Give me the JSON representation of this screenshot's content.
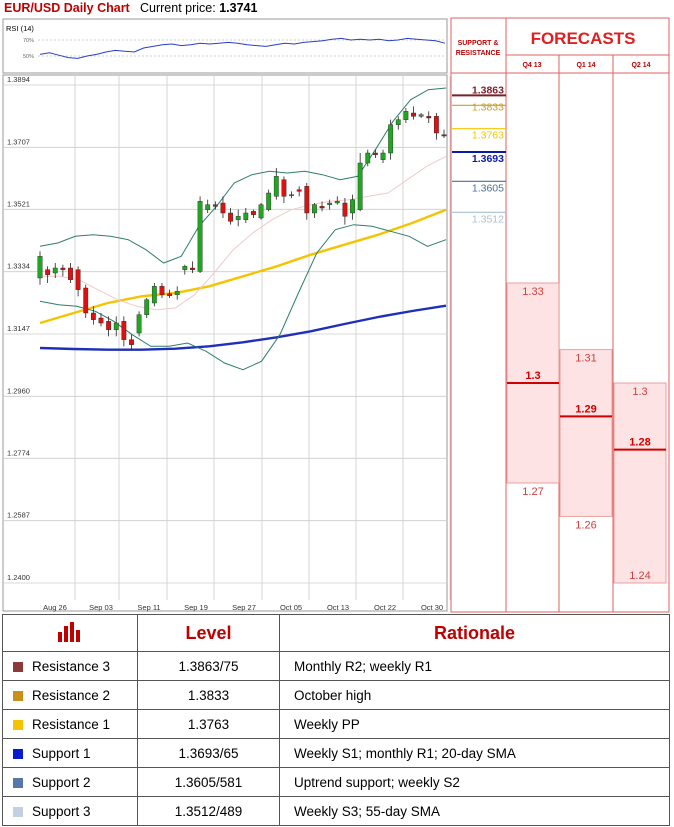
{
  "header": {
    "title": "EUR/USD Daily Chart",
    "price_label": "Current price:",
    "price_value": "1.3741"
  },
  "chart_data": [
    {
      "type": "line",
      "title": "RSI (14)",
      "y_ticks": [
        "70%",
        "50%"
      ],
      "series": [
        {
          "values": [
            52,
            54,
            51,
            48,
            47,
            50,
            52,
            55,
            57,
            56,
            55,
            60,
            62,
            64,
            65,
            63,
            64,
            66,
            65,
            66,
            67,
            66,
            64,
            63,
            62,
            64,
            66,
            65,
            67,
            68,
            69,
            71,
            72,
            70,
            71,
            70,
            71,
            69,
            70,
            72,
            71,
            70,
            69,
            66
          ]
        }
      ]
    },
    {
      "type": "candlestick",
      "y_ticks": [
        "1.3894",
        "1.3707",
        "1.3521",
        "1.3334",
        "1.3147",
        "1.2960",
        "1.2774",
        "1.2587",
        "1.2400"
      ],
      "x_ticks": [
        "Aug 26",
        "Sep 03",
        "Sep 11",
        "Sep 19",
        "Sep 27",
        "Oct 05",
        "Oct 13",
        "Oct 22",
        "Oct 30"
      ],
      "ylim": [
        1.24,
        1.3894
      ],
      "candles": [
        {
          "o": 1.3315,
          "h": 1.3395,
          "l": 1.3295,
          "c": 1.338
        },
        {
          "o": 1.334,
          "h": 1.335,
          "l": 1.33,
          "c": 1.3325
        },
        {
          "o": 1.333,
          "h": 1.336,
          "l": 1.3315,
          "c": 1.3345
        },
        {
          "o": 1.3345,
          "h": 1.3355,
          "l": 1.332,
          "c": 1.334
        },
        {
          "o": 1.3345,
          "h": 1.336,
          "l": 1.33,
          "c": 1.331
        },
        {
          "o": 1.334,
          "h": 1.335,
          "l": 1.326,
          "c": 1.328
        },
        {
          "o": 1.3285,
          "h": 1.3295,
          "l": 1.3195,
          "c": 1.321
        },
        {
          "o": 1.321,
          "h": 1.323,
          "l": 1.3175,
          "c": 1.319
        },
        {
          "o": 1.3195,
          "h": 1.321,
          "l": 1.317,
          "c": 1.318
        },
        {
          "o": 1.3185,
          "h": 1.32,
          "l": 1.314,
          "c": 1.316
        },
        {
          "o": 1.316,
          "h": 1.32,
          "l": 1.314,
          "c": 1.318
        },
        {
          "o": 1.3185,
          "h": 1.32,
          "l": 1.311,
          "c": 1.313
        },
        {
          "o": 1.313,
          "h": 1.3145,
          "l": 1.31,
          "c": 1.3115
        },
        {
          "o": 1.315,
          "h": 1.3215,
          "l": 1.314,
          "c": 1.3205
        },
        {
          "o": 1.3205,
          "h": 1.3255,
          "l": 1.3195,
          "c": 1.325
        },
        {
          "o": 1.324,
          "h": 1.33,
          "l": 1.323,
          "c": 1.329
        },
        {
          "o": 1.329,
          "h": 1.33,
          "l": 1.3255,
          "c": 1.3265
        },
        {
          "o": 1.3268,
          "h": 1.328,
          "l": 1.3255,
          "c": 1.3262
        },
        {
          "o": 1.3265,
          "h": 1.329,
          "l": 1.325,
          "c": 1.3275
        },
        {
          "o": 1.334,
          "h": 1.3355,
          "l": 1.3325,
          "c": 1.335
        },
        {
          "o": 1.3345,
          "h": 1.3365,
          "l": 1.333,
          "c": 1.334
        },
        {
          "o": 1.3335,
          "h": 1.356,
          "l": 1.333,
          "c": 1.3545
        },
        {
          "o": 1.352,
          "h": 1.355,
          "l": 1.351,
          "c": 1.3535
        },
        {
          "o": 1.3535,
          "h": 1.3545,
          "l": 1.352,
          "c": 1.353
        },
        {
          "o": 1.354,
          "h": 1.356,
          "l": 1.3495,
          "c": 1.351
        },
        {
          "o": 1.351,
          "h": 1.3525,
          "l": 1.3475,
          "c": 1.3485
        },
        {
          "o": 1.349,
          "h": 1.352,
          "l": 1.347,
          "c": 1.35
        },
        {
          "o": 1.349,
          "h": 1.3525,
          "l": 1.348,
          "c": 1.351
        },
        {
          "o": 1.3515,
          "h": 1.352,
          "l": 1.3495,
          "c": 1.3505
        },
        {
          "o": 1.3495,
          "h": 1.354,
          "l": 1.349,
          "c": 1.3535
        },
        {
          "o": 1.352,
          "h": 1.358,
          "l": 1.3515,
          "c": 1.357
        },
        {
          "o": 1.356,
          "h": 1.3645,
          "l": 1.355,
          "c": 1.362
        },
        {
          "o": 1.361,
          "h": 1.362,
          "l": 1.354,
          "c": 1.356
        },
        {
          "o": 1.3565,
          "h": 1.3575,
          "l": 1.3555,
          "c": 1.3565
        },
        {
          "o": 1.358,
          "h": 1.359,
          "l": 1.356,
          "c": 1.3575
        },
        {
          "o": 1.359,
          "h": 1.36,
          "l": 1.349,
          "c": 1.351
        },
        {
          "o": 1.351,
          "h": 1.354,
          "l": 1.3495,
          "c": 1.3535
        },
        {
          "o": 1.353,
          "h": 1.3545,
          "l": 1.3515,
          "c": 1.3525
        },
        {
          "o": 1.3535,
          "h": 1.355,
          "l": 1.352,
          "c": 1.354
        },
        {
          "o": 1.354,
          "h": 1.356,
          "l": 1.3535,
          "c": 1.3545
        },
        {
          "o": 1.354,
          "h": 1.3555,
          "l": 1.3475,
          "c": 1.35
        },
        {
          "o": 1.351,
          "h": 1.3565,
          "l": 1.349,
          "c": 1.355
        },
        {
          "o": 1.352,
          "h": 1.369,
          "l": 1.3515,
          "c": 1.366
        },
        {
          "o": 1.366,
          "h": 1.37,
          "l": 1.365,
          "c": 1.369
        },
        {
          "o": 1.369,
          "h": 1.37,
          "l": 1.3675,
          "c": 1.3685
        },
        {
          "o": 1.367,
          "h": 1.37,
          "l": 1.366,
          "c": 1.369
        },
        {
          "o": 1.369,
          "h": 1.379,
          "l": 1.367,
          "c": 1.3775
        },
        {
          "o": 1.3775,
          "h": 1.38,
          "l": 1.376,
          "c": 1.379
        },
        {
          "o": 1.379,
          "h": 1.3825,
          "l": 1.378,
          "c": 1.3815
        },
        {
          "o": 1.381,
          "h": 1.383,
          "l": 1.379,
          "c": 1.38
        },
        {
          "o": 1.38,
          "h": 1.381,
          "l": 1.3795,
          "c": 1.3805
        },
        {
          "o": 1.38,
          "h": 1.3815,
          "l": 1.378,
          "c": 1.3795
        },
        {
          "o": 1.38,
          "h": 1.381,
          "l": 1.373,
          "c": 1.375
        },
        {
          "o": 1.3745,
          "h": 1.376,
          "l": 1.3735,
          "c": 1.3741
        }
      ],
      "lines": [
        {
          "name": "55-day SMA",
          "color": "#f5c400",
          "values": [
            1.318,
            1.321,
            1.324,
            1.326,
            1.327,
            1.329,
            1.332,
            1.335,
            1.3385,
            1.3415,
            1.3445,
            1.348,
            1.352
          ]
        },
        {
          "name": "200-day SMA",
          "color": "#1e2fb8",
          "values": [
            1.3105,
            1.3102,
            1.31,
            1.31,
            1.3103,
            1.311,
            1.3122,
            1.3137,
            1.3155,
            1.3177,
            1.3198,
            1.3216,
            1.3232
          ]
        },
        {
          "name": "Bollinger upper",
          "color": "#2e7d6b",
          "values": [
            1.341,
            1.342,
            1.344,
            1.3445,
            1.344,
            1.343,
            1.34,
            1.336,
            1.338,
            1.347,
            1.353,
            1.36,
            1.3625,
            1.3635,
            1.363,
            1.3635,
            1.3625,
            1.361,
            1.362,
            1.37,
            1.3785,
            1.385,
            1.388,
            1.3885
          ]
        },
        {
          "name": "Bollinger lower",
          "color": "#2e7d6b",
          "values": [
            1.3245,
            1.3235,
            1.323,
            1.3215,
            1.3185,
            1.3145,
            1.311,
            1.311,
            1.312,
            1.3095,
            1.306,
            1.304,
            1.3065,
            1.3145,
            1.327,
            1.339,
            1.346,
            1.3475,
            1.347,
            1.3455,
            1.344,
            1.341,
            1.343
          ]
        },
        {
          "name": "20-day SMA",
          "color": "#f3c9c9",
          "values": [
            1.332,
            1.332,
            1.331,
            1.328,
            1.325,
            1.323,
            1.322,
            1.3225,
            1.3265,
            1.333,
            1.34,
            1.345,
            1.349,
            1.352,
            1.3535,
            1.3545,
            1.355,
            1.356,
            1.357,
            1.361,
            1.365,
            1.368
          ]
        }
      ]
    },
    {
      "type": "table",
      "title": "FORECASTS",
      "support_resistance_header": [
        "SUPPORT &",
        "RESISTANCE"
      ],
      "levels": [
        {
          "label": "1.3863",
          "value": 1.3863,
          "color": "#7b1f2a"
        },
        {
          "label": "1.3833",
          "value": 1.3833,
          "color": "#c8a030"
        },
        {
          "label": "1.3763",
          "value": 1.3763,
          "color": "#f5c400"
        },
        {
          "label": "1.3693",
          "value": 1.3693,
          "color": "#0a1aa8"
        },
        {
          "label": "1.3605",
          "value": 1.3605,
          "color": "#4a6f9a"
        },
        {
          "label": "1.3512",
          "value": 1.3512,
          "color": "#a9bfd4"
        }
      ],
      "quarters": [
        {
          "name": "Q4 13",
          "high": "1.33",
          "mid": "1.3",
          "low": "1.27",
          "high_v": 1.33,
          "mid_v": 1.3,
          "low_v": 1.27
        },
        {
          "name": "Q1 14",
          "high": "1.31",
          "mid": "1.29",
          "low": "1.26",
          "high_v": 1.31,
          "mid_v": 1.29,
          "low_v": 1.26
        },
        {
          "name": "Q2 14",
          "high": "1.3",
          "mid": "1.28",
          "low": "1.24",
          "high_v": 1.3,
          "mid_v": 1.28,
          "low_v": 1.24
        }
      ]
    }
  ],
  "table": {
    "columns": [
      "Level",
      "Rationale"
    ],
    "rows": [
      {
        "name": "Resistance 3",
        "level": "1.3863/75",
        "rationale": "Monthly R2; weekly R1",
        "color": "#8b3a3a"
      },
      {
        "name": "Resistance 2",
        "level": "1.3833",
        "rationale": "October high",
        "color": "#c8901a"
      },
      {
        "name": "Resistance 1",
        "level": "1.3763",
        "rationale": "Weekly PP",
        "color": "#f5c400"
      },
      {
        "name": "Support 1",
        "level": "1.3693/65",
        "rationale": "Weekly S1; monthly R1; 20-day SMA",
        "color": "#0a1ad0"
      },
      {
        "name": "Support 2",
        "level": "1.3605/581",
        "rationale": "Uptrend support; weekly S2",
        "color": "#5577aa"
      },
      {
        "name": "Support 3",
        "level": "1.3512/489",
        "rationale": "Weekly S3; 55-day SMA",
        "color": "#c3cfe2"
      }
    ]
  }
}
